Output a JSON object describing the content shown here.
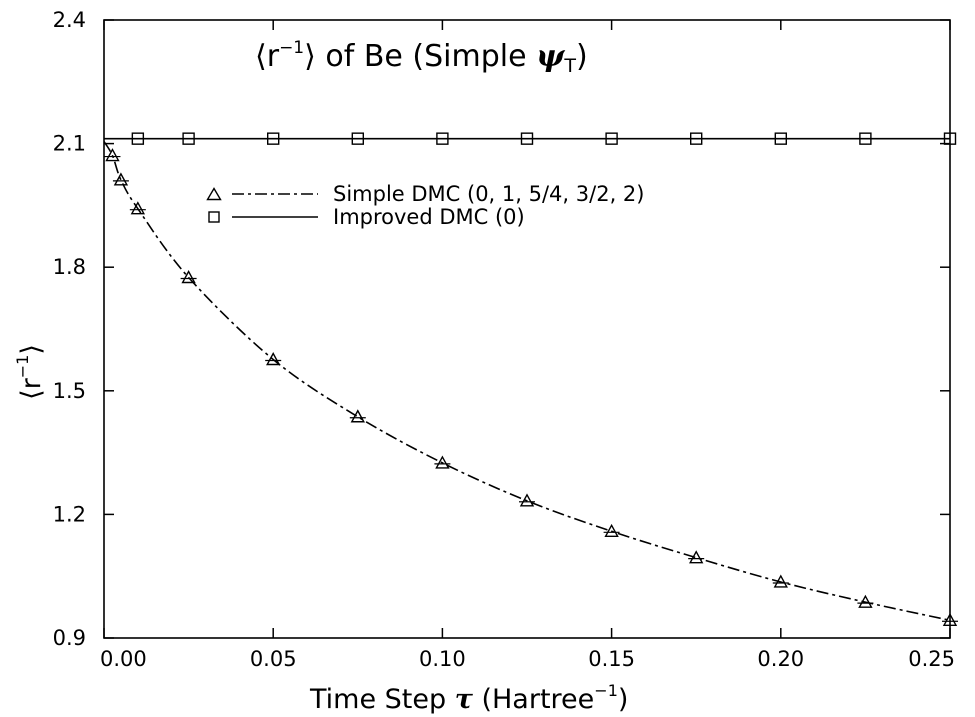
{
  "chart_data": {
    "type": "line",
    "title": {
      "open": "⟨",
      "r": "r",
      "exp": "−1",
      "close": "⟩",
      "rest": " of Be (Simple ",
      "psi": "ψ",
      "sub": "T",
      "end": ")"
    },
    "xlabel": {
      "pre": "Time Step ",
      "tau": "τ",
      "post": " (Hartree",
      "exp": "−1",
      "end": ")"
    },
    "ylabel": {
      "open": "⟨",
      "r": "r",
      "exp": "−1",
      "close": "⟩"
    },
    "xlim": [
      0.0,
      0.25
    ],
    "ylim": [
      0.9,
      2.4
    ],
    "xticks": [
      {
        "value": 0.0,
        "label": "0.00"
      },
      {
        "value": 0.05,
        "label": "0.05"
      },
      {
        "value": 0.1,
        "label": "0.10"
      },
      {
        "value": 0.15,
        "label": "0.15"
      },
      {
        "value": 0.2,
        "label": "0.20"
      },
      {
        "value": 0.25,
        "label": "0.25"
      }
    ],
    "yticks": [
      {
        "value": 0.9,
        "label": "0.9"
      },
      {
        "value": 1.2,
        "label": "1.2"
      },
      {
        "value": 1.5,
        "label": "1.5"
      },
      {
        "value": 1.8,
        "label": "1.8"
      },
      {
        "value": 2.1,
        "label": "2.1"
      },
      {
        "value": 2.4,
        "label": "2.4"
      }
    ],
    "grid": false,
    "legend_position": "upper-left",
    "series": [
      {
        "name": "Simple DMC (0, 1, 5/4, 3/2, 2)",
        "marker": "triangle",
        "line_style": "dash-dot",
        "x": [
          0.0025,
          0.005,
          0.01,
          0.025,
          0.05,
          0.075,
          0.1,
          0.125,
          0.15,
          0.175,
          0.2,
          0.225,
          0.25
        ],
        "y": [
          2.071,
          2.012,
          1.942,
          1.775,
          1.576,
          1.437,
          1.325,
          1.233,
          1.159,
          1.095,
          1.036,
          0.987,
          0.943
        ],
        "curve_x": [
          0.0,
          0.0025,
          0.005,
          0.01,
          0.025,
          0.05,
          0.075,
          0.1,
          0.125,
          0.15,
          0.175,
          0.2,
          0.225,
          0.25
        ],
        "curve_y": [
          2.105,
          2.071,
          2.012,
          1.942,
          1.775,
          1.576,
          1.437,
          1.325,
          1.233,
          1.159,
          1.095,
          1.036,
          0.987,
          0.943
        ]
      },
      {
        "name": "Improved DMC (0)",
        "marker": "square",
        "line_style": "solid",
        "x": [
          0.01,
          0.025,
          0.05,
          0.075,
          0.1,
          0.125,
          0.15,
          0.175,
          0.2,
          0.225,
          0.25
        ],
        "y": [
          2.112,
          2.112,
          2.112,
          2.112,
          2.112,
          2.112,
          2.112,
          2.112,
          2.112,
          2.112,
          2.112
        ],
        "line_y": 2.112
      }
    ]
  }
}
